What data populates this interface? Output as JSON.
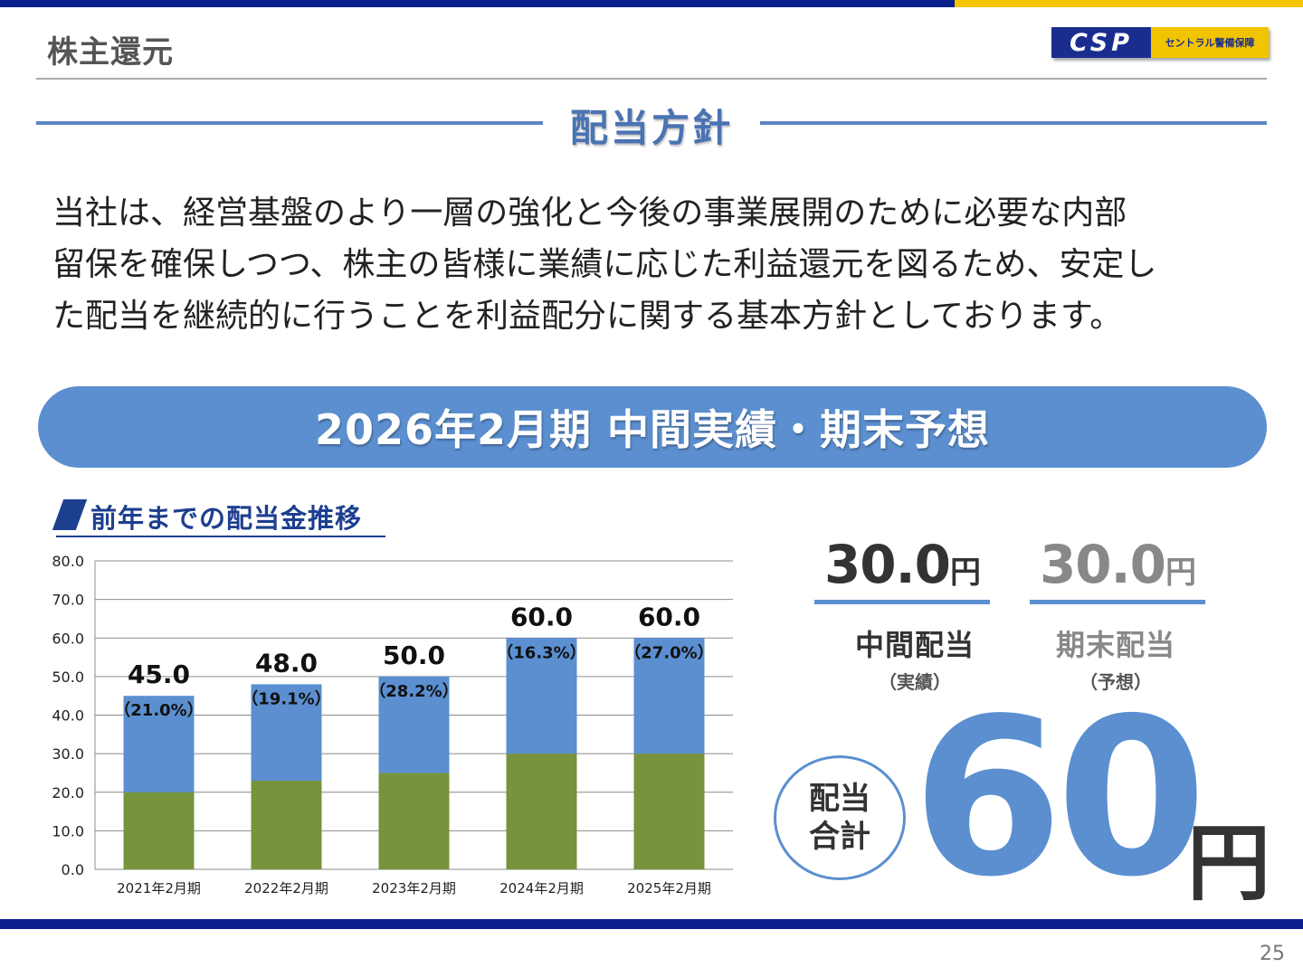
{
  "header": {
    "section_title": "株主還元",
    "logo_mark": "CSP",
    "logo_name": "セントラル警備保障"
  },
  "policy": {
    "title": "配当方針",
    "text_lines": [
      "当社は、経営基盤のより一層の強化と今後の事業展開のために必要な内部",
      "留保を確保しつつ、株主の皆様に業績に応じた利益還元を図るため、安定し",
      "た配当を継続的に行うことを利益配分に関する基本方針としております。"
    ]
  },
  "banner": {
    "title": "2026年2月期 中間実績・期末予想"
  },
  "chart_heading": "前年までの配当金推移",
  "chart_data": {
    "type": "bar",
    "stacked": true,
    "categories": [
      "2021年2月期",
      "2022年2月期",
      "2023年2月期",
      "2024年2月期",
      "2025年2月期"
    ],
    "series": [
      {
        "values": [
          20.0,
          23.0,
          25.0,
          30.0,
          30.0
        ],
        "color": "#77933c"
      },
      {
        "values": [
          25.0,
          25.0,
          25.0,
          30.0,
          30.0
        ],
        "color": "#5b8fd0"
      }
    ],
    "totals": [
      "45.0",
      "48.0",
      "50.0",
      "60.0",
      "60.0"
    ],
    "payout_ratios": [
      "（21.0%）",
      "（19.1%）",
      "（28.2%）",
      "（16.3%）",
      "（27.0%）"
    ],
    "ylim": [
      0,
      80
    ],
    "yticks": [
      "0.0",
      "10.0",
      "20.0",
      "30.0",
      "40.0",
      "50.0",
      "60.0",
      "70.0",
      "80.0"
    ],
    "grid": true,
    "legend": "none"
  },
  "dividends": {
    "interim": {
      "amount": "30.0",
      "unit": "円",
      "label": "中間配当",
      "sub": "（実績）"
    },
    "year_end": {
      "amount": "30.0",
      "unit": "円",
      "label": "期末配当",
      "sub": "（予想）"
    },
    "total": {
      "label_line1": "配当",
      "label_line2": "合計",
      "amount": "60",
      "unit": "円"
    }
  },
  "colors": {
    "navy": "#0b1e8e",
    "gold": "#f6c400",
    "accent_blue": "#5b8fd0",
    "bar_green": "#77933c"
  },
  "page_number": "25"
}
